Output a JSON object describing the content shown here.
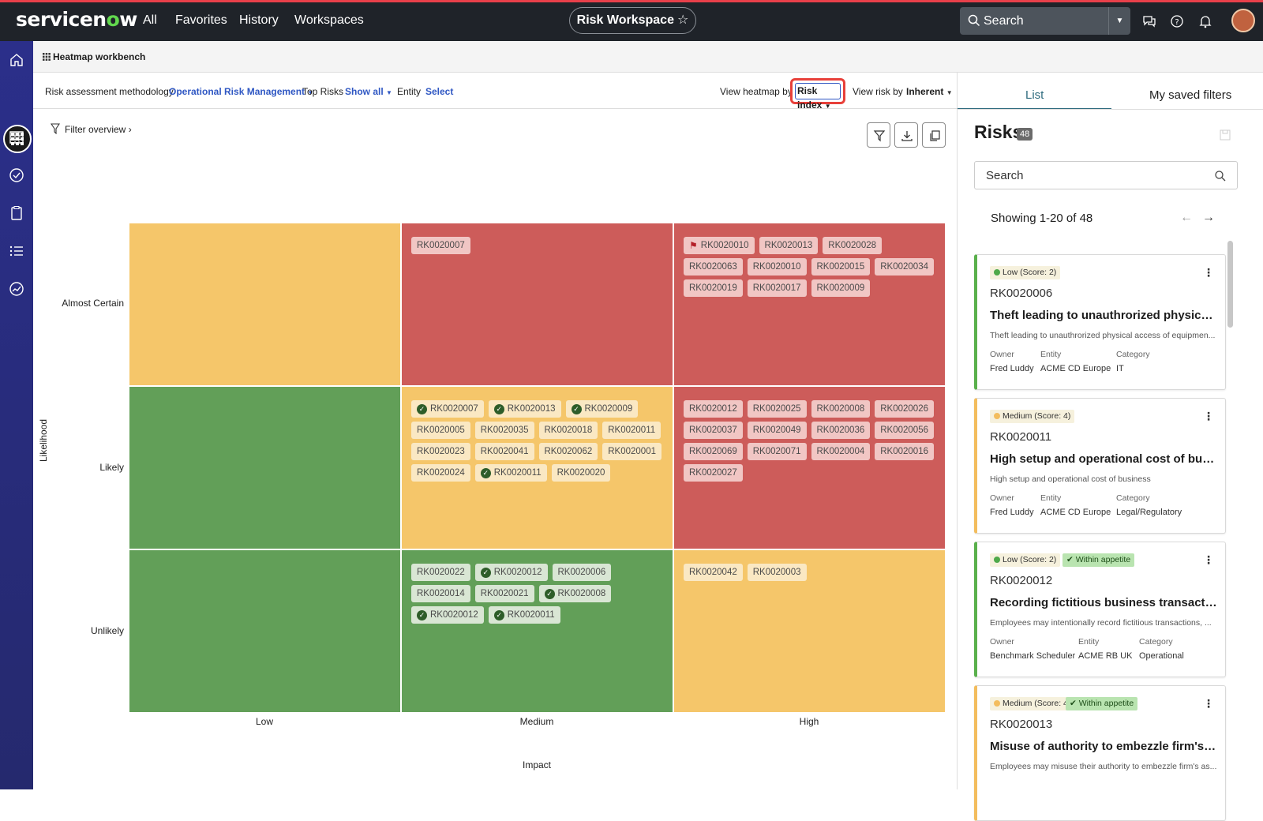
{
  "topbar": {
    "logo_text": "servicenow",
    "nav": [
      "All",
      "Favorites",
      "History",
      "Workspaces"
    ],
    "workspace_title": "Risk Workspace",
    "search_label": "Search"
  },
  "breadcrumb": {
    "title": "Heatmap workbench"
  },
  "filterbar": {
    "methodology_label": "Risk assessment methodology",
    "methodology_value": "Operational Risk Management",
    "top_risks_label": "Top Risks",
    "top_risks_value": "Show all",
    "entity_label": "Entity",
    "entity_value": "Select",
    "view_heatmap_label": "View heatmap by",
    "view_heatmap_value": "Risk index",
    "view_risk_label": "View risk by",
    "view_risk_value": "Inherent"
  },
  "filter_overview": "Filter overview",
  "heatmap": {
    "y_axis_label": "Likelihood",
    "x_axis_label": "Impact",
    "rows": [
      "Almost Certain",
      "Likely",
      "Unlikely"
    ],
    "columns": [
      "Low",
      "Medium",
      "High"
    ],
    "colors": {
      "red": "#cd5c5a",
      "yellow": "#f5c66a",
      "green": "#629f58"
    },
    "cells": [
      [
        {
          "color": "yellow",
          "risks": []
        },
        {
          "color": "red",
          "risks": [
            {
              "id": "RK0020007",
              "mark": ""
            }
          ]
        },
        {
          "color": "red",
          "risks": [
            {
              "id": "RK0020010",
              "mark": "flag"
            },
            {
              "id": "RK0020013",
              "mark": ""
            },
            {
              "id": "RK0020028",
              "mark": ""
            },
            {
              "id": "RK0020063",
              "mark": ""
            },
            {
              "id": "RK0020010",
              "mark": ""
            },
            {
              "id": "RK0020015",
              "mark": ""
            },
            {
              "id": "RK0020034",
              "mark": ""
            },
            {
              "id": "RK0020019",
              "mark": ""
            },
            {
              "id": "RK0020017",
              "mark": ""
            },
            {
              "id": "RK0020009",
              "mark": ""
            }
          ]
        }
      ],
      [
        {
          "color": "green",
          "risks": []
        },
        {
          "color": "yellow",
          "risks": [
            {
              "id": "RK0020007",
              "mark": "check"
            },
            {
              "id": "RK0020013",
              "mark": "check"
            },
            {
              "id": "RK0020009",
              "mark": "check"
            },
            {
              "id": "RK0020005",
              "mark": ""
            },
            {
              "id": "RK0020035",
              "mark": ""
            },
            {
              "id": "RK0020018",
              "mark": ""
            },
            {
              "id": "RK0020011",
              "mark": ""
            },
            {
              "id": "RK0020023",
              "mark": ""
            },
            {
              "id": "RK0020041",
              "mark": ""
            },
            {
              "id": "RK0020062",
              "mark": ""
            },
            {
              "id": "RK0020001",
              "mark": ""
            },
            {
              "id": "RK0020024",
              "mark": ""
            },
            {
              "id": "RK0020011",
              "mark": "check"
            },
            {
              "id": "RK0020020",
              "mark": ""
            }
          ]
        },
        {
          "color": "red",
          "risks": [
            {
              "id": "RK0020012",
              "mark": ""
            },
            {
              "id": "RK0020025",
              "mark": ""
            },
            {
              "id": "RK0020008",
              "mark": ""
            },
            {
              "id": "RK0020026",
              "mark": ""
            },
            {
              "id": "RK0020037",
              "mark": ""
            },
            {
              "id": "RK0020049",
              "mark": ""
            },
            {
              "id": "RK0020036",
              "mark": ""
            },
            {
              "id": "RK0020056",
              "mark": ""
            },
            {
              "id": "RK0020069",
              "mark": ""
            },
            {
              "id": "RK0020071",
              "mark": ""
            },
            {
              "id": "RK0020004",
              "mark": ""
            },
            {
              "id": "RK0020016",
              "mark": ""
            },
            {
              "id": "RK0020027",
              "mark": ""
            }
          ]
        }
      ],
      [
        {
          "color": "green",
          "risks": []
        },
        {
          "color": "green",
          "risks": [
            {
              "id": "RK0020022",
              "mark": ""
            },
            {
              "id": "RK0020012",
              "mark": "check"
            },
            {
              "id": "RK0020006",
              "mark": ""
            },
            {
              "id": "RK0020014",
              "mark": ""
            },
            {
              "id": "RK0020021",
              "mark": ""
            },
            {
              "id": "RK0020008",
              "mark": "check"
            },
            {
              "id": "RK0020012",
              "mark": "check"
            },
            {
              "id": "RK0020011",
              "mark": "check"
            }
          ]
        },
        {
          "color": "yellow",
          "risks": [
            {
              "id": "RK0020042",
              "mark": ""
            },
            {
              "id": "RK0020003",
              "mark": ""
            }
          ]
        }
      ]
    ]
  },
  "right_panel": {
    "tabs": [
      "List",
      "My saved filters"
    ],
    "title": "Risks",
    "count": "48",
    "search_placeholder": "Search",
    "showing": "Showing 1-20 of 48",
    "labels": {
      "owner": "Owner",
      "entity": "Entity",
      "category": "Category"
    },
    "cards": [
      {
        "level": "low",
        "badge": "Low (Score: 2)",
        "appetite": "",
        "id": "RK0020006",
        "name": "Theft leading to unauthrorized physical acce...",
        "desc": "Theft leading to unauthrorized physical access of equipmen...",
        "owner": "Fred Luddy",
        "entity": "ACME CD Europe",
        "category": "IT"
      },
      {
        "level": "medium",
        "badge": "Medium (Score: 4)",
        "appetite": "",
        "id": "RK0020011",
        "name": "High setup and operational cost of business",
        "desc": "High setup and operational cost of business",
        "owner": "Fred Luddy",
        "entity": "ACME CD Europe",
        "category": "Legal/Regulatory"
      },
      {
        "level": "low",
        "badge": "Low (Score: 2)",
        "appetite": "Within appetite",
        "id": "RK0020012",
        "name": "Recording fictitious business transactions fo...",
        "desc": "Employees may intentionally record fictitious transactions, ...",
        "owner": "Benchmark Scheduler",
        "entity": "ACME RB UK",
        "category": "Operational"
      },
      {
        "level": "medium",
        "badge": "Medium (Score: 4)",
        "appetite": "Within appetite",
        "id": "RK0020013",
        "name": "Misuse of authority to embezzle firm's asset...",
        "desc": "Employees may misuse their authority to embezzle firm's as...",
        "owner": "",
        "entity": "",
        "category": ""
      }
    ]
  }
}
